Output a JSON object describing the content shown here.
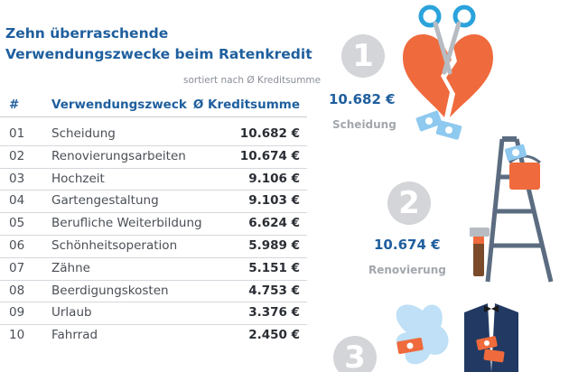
{
  "title": "Zehn überraschende Verwendungszwecke beim Ratenkredit",
  "subtitle": "sortiert nach Ø Kreditsumme",
  "table": {
    "headers": {
      "num": "#",
      "purpose": "Verwendungszweck",
      "sum": "Ø Kreditsumme"
    },
    "rows": [
      {
        "num": "01",
        "purpose": "Scheidung",
        "sum": "10.682 €"
      },
      {
        "num": "02",
        "purpose": "Renovierungsarbeiten",
        "sum": "10.674 €"
      },
      {
        "num": "03",
        "purpose": "Hochzeit",
        "sum": "9.106 €"
      },
      {
        "num": "04",
        "purpose": "Gartengestaltung",
        "sum": "9.103 €"
      },
      {
        "num": "05",
        "purpose": "Berufliche Weiterbildung",
        "sum": "6.624 €"
      },
      {
        "num": "06",
        "purpose": "Schönheitsoperation",
        "sum": "5.989 €"
      },
      {
        "num": "07",
        "purpose": "Zähne",
        "sum": "5.151 €"
      },
      {
        "num": "08",
        "purpose": "Beerdigungskosten",
        "sum": "4.753 €"
      },
      {
        "num": "09",
        "purpose": "Urlaub",
        "sum": "3.376 €"
      },
      {
        "num": "10",
        "purpose": "Fahrrad",
        "sum": "2.450 €"
      }
    ]
  },
  "highlights": [
    {
      "rank": "1",
      "amount": "10.682 €",
      "label": "Scheidung",
      "icon": "broken-heart-scissors-icon"
    },
    {
      "rank": "2",
      "amount": "10.674 €",
      "label": "Renovierung",
      "icon": "ladder-paint-icon"
    },
    {
      "rank": "3",
      "icon": "wedding-suit-icon"
    }
  ],
  "colors": {
    "brand_blue": "#1f5f9e",
    "heart_orange": "#ef6a3c",
    "badge_grey": "#d3d5d8",
    "suit_navy": "#223a63",
    "light_blue": "#8ec9ef"
  }
}
